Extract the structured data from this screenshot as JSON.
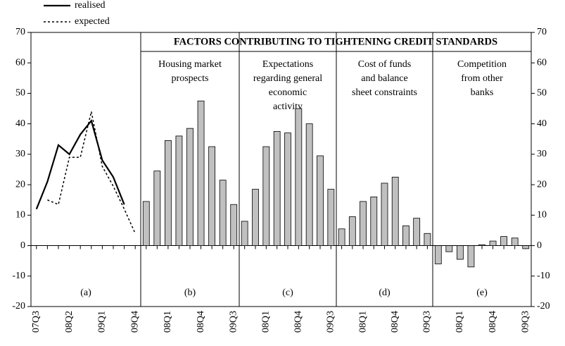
{
  "heading": "FACTORS CONTRIBUTING TO TIGHTENING CREDIT STANDARDS",
  "chart_data": [
    {
      "type": "line",
      "label": "(a)",
      "categories": [
        "07Q3",
        null,
        null,
        "08Q2",
        null,
        null,
        "09Q1",
        null,
        null,
        "09Q4"
      ],
      "series": [
        {
          "name": "realised",
          "color": "#000000",
          "dash": false,
          "values": [
            12,
            21,
            33,
            30,
            36.5,
            41,
            28,
            22.5,
            13.5,
            null
          ]
        },
        {
          "name": "expected",
          "color": "#000000",
          "dash": true,
          "values": [
            null,
            15,
            13.5,
            29,
            29,
            44,
            26,
            19.5,
            12,
            4
          ]
        }
      ],
      "ylim": [
        -20,
        70
      ],
      "yticks": [
        -20,
        -10,
        0,
        10,
        20,
        30,
        40,
        50,
        60,
        70
      ]
    },
    {
      "type": "bar",
      "label": "(b)",
      "subtitle": [
        "Housing market",
        "prospects"
      ],
      "color": "#c0c0c0",
      "categories": [
        null,
        null,
        "08Q1",
        null,
        null,
        "08Q4",
        null,
        null,
        "09Q3"
      ],
      "values": [
        14.5,
        24.5,
        34.5,
        36,
        38.5,
        47.5,
        32.5,
        21.5,
        13.5
      ]
    },
    {
      "type": "bar",
      "label": "(c)",
      "subtitle": [
        "Expectations",
        "regarding general",
        "economic",
        "activity"
      ],
      "color": "#c0c0c0",
      "categories": [
        null,
        null,
        "08Q1",
        null,
        null,
        "08Q4",
        null,
        null,
        "09Q3"
      ],
      "values": [
        8,
        18.5,
        32.5,
        37.5,
        37,
        45,
        40,
        29.5,
        18.5
      ]
    },
    {
      "type": "bar",
      "label": "(d)",
      "subtitle": [
        "Cost of funds",
        "and balance",
        "sheet constraints"
      ],
      "color": "#c0c0c0",
      "categories": [
        null,
        null,
        "08Q1",
        null,
        null,
        "08Q4",
        null,
        null,
        "09Q3"
      ],
      "values": [
        5.5,
        9.5,
        14.5,
        16,
        20.5,
        22.5,
        6.5,
        9,
        4
      ]
    },
    {
      "type": "bar",
      "label": "(e)",
      "subtitle": [
        "Competition",
        "from other",
        "banks"
      ],
      "color": "#c0c0c0",
      "categories": [
        null,
        null,
        "08Q1",
        null,
        null,
        "08Q4",
        null,
        null,
        "09Q3"
      ],
      "values": [
        -6,
        -2,
        -4.5,
        -7,
        0.3,
        1.5,
        3,
        2.5,
        -1
      ]
    }
  ]
}
